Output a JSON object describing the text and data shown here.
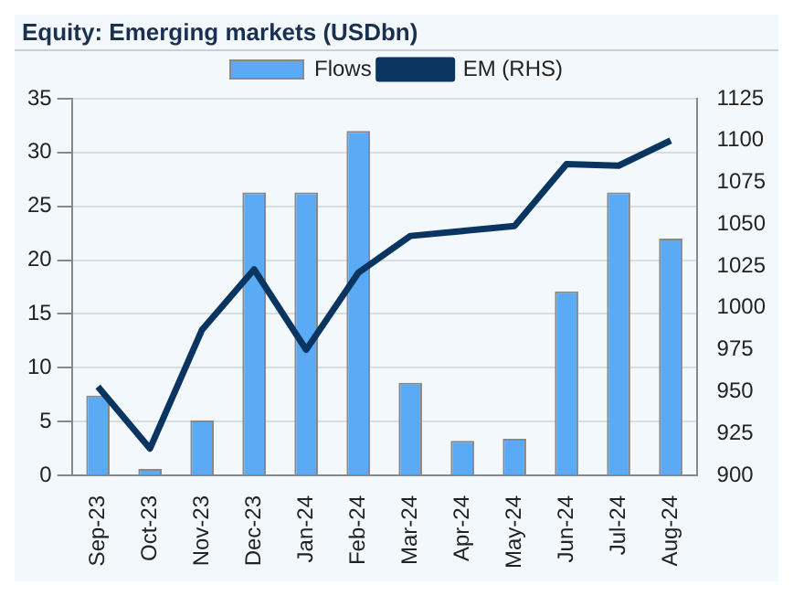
{
  "chart_data": {
    "type": "bar",
    "title": "Equity: Emerging markets (USDbn)",
    "categories": [
      "Sep-23",
      "Oct-23",
      "Nov-23",
      "Dec-23",
      "Jan-24",
      "Feb-24",
      "Mar-24",
      "Apr-24",
      "May-24",
      "Jun-24",
      "Jul-24",
      "Aug-24"
    ],
    "series": [
      {
        "name": "Flows",
        "color": "#5aaaf5",
        "values": [
          7.4,
          0.6,
          5.1,
          26.3,
          26.3,
          32,
          8.6,
          3.2,
          3.4,
          17.1,
          26.3,
          22
        ]
      },
      {
        "name": "EM (RHS)",
        "type": "line",
        "axis": "y2",
        "color": "#0a3560",
        "values": [
          953,
          916,
          987,
          1023,
          975,
          1021,
          1043,
          1046,
          1049,
          1086,
          1085,
          1100
        ]
      }
    ],
    "ylim": [
      0,
      35
    ],
    "yticks": [
      0,
      5,
      10,
      15,
      20,
      25,
      30,
      35
    ],
    "y2lim": [
      900,
      1125
    ],
    "y2ticks": [
      900,
      925,
      950,
      975,
      1000,
      1025,
      1050,
      1075,
      1100,
      1125
    ],
    "grid": "y",
    "legend": "top"
  }
}
